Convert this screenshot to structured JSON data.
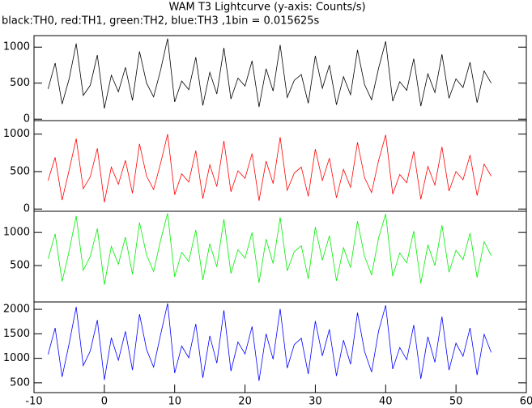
{
  "chart_data": [
    {
      "type": "line",
      "title": "WAM T3 Lightcurve (y-axis: Counts/s)",
      "subtitle": "black:TH0, red:TH1, green:TH2, blue:TH3 ,1bin = 0.015625s",
      "x": [
        -8,
        -7,
        -6,
        -5,
        -4,
        -3,
        -2,
        -1,
        0,
        1,
        2,
        3,
        4,
        5,
        6,
        7,
        8,
        9,
        10,
        11,
        12,
        13,
        14,
        15,
        16,
        17,
        18,
        19,
        20,
        21,
        22,
        23,
        24,
        25,
        26,
        27,
        28,
        29,
        30,
        31,
        32,
        33,
        34,
        35,
        36,
        37,
        38,
        39,
        40,
        41,
        42,
        43,
        44,
        45,
        46,
        47,
        48,
        49,
        50,
        51,
        52,
        53,
        54,
        55
      ],
      "xlim": [
        -10,
        60
      ],
      "ylim": [
        -20,
        1160
      ],
      "yticks": [
        0,
        500,
        1000
      ],
      "series": [
        {
          "color": "#000000",
          "values": [
            420,
            780,
            210,
            560,
            1050,
            330,
            470,
            890,
            150,
            610,
            380,
            720,
            260,
            940,
            500,
            310,
            680,
            1120,
            240,
            530,
            410,
            860,
            190,
            650,
            350,
            990,
            280,
            570,
            460,
            810,
            170,
            700,
            390,
            1030,
            300,
            540,
            620,
            220,
            880,
            430,
            750,
            200,
            590,
            340,
            960,
            480,
            270,
            710,
            1080,
            250,
            520,
            400,
            840,
            180,
            630,
            370,
            900,
            290,
            560,
            440,
            790,
            230,
            670,
            500
          ]
        }
      ]
    },
    {
      "type": "line",
      "x": [
        -8,
        -7,
        -6,
        -5,
        -4,
        -3,
        -2,
        -1,
        0,
        1,
        2,
        3,
        4,
        5,
        6,
        7,
        8,
        9,
        10,
        11,
        12,
        13,
        14,
        15,
        16,
        17,
        18,
        19,
        20,
        21,
        22,
        23,
        24,
        25,
        26,
        27,
        28,
        29,
        30,
        31,
        32,
        33,
        34,
        35,
        36,
        37,
        38,
        39,
        40,
        41,
        42,
        43,
        44,
        45,
        46,
        47,
        48,
        49,
        50,
        51,
        52,
        53,
        54,
        55
      ],
      "xlim": [
        -10,
        60
      ],
      "ylim": [
        -30,
        1180
      ],
      "yticks": [
        0,
        500,
        1000
      ],
      "series": [
        {
          "color": "#ff0000",
          "values": [
            380,
            690,
            120,
            520,
            940,
            270,
            430,
            810,
            90,
            560,
            330,
            650,
            210,
            870,
            440,
            260,
            610,
            1000,
            190,
            470,
            360,
            780,
            140,
            590,
            300,
            910,
            230,
            510,
            410,
            740,
            110,
            640,
            340,
            960,
            250,
            480,
            560,
            170,
            800,
            380,
            680,
            150,
            530,
            290,
            890,
            420,
            220,
            650,
            990,
            200,
            460,
            350,
            770,
            130,
            570,
            320,
            830,
            240,
            500,
            390,
            720,
            180,
            600,
            440
          ]
        }
      ]
    },
    {
      "type": "line",
      "x": [
        -8,
        -7,
        -6,
        -5,
        -4,
        -3,
        -2,
        -1,
        0,
        1,
        2,
        3,
        4,
        5,
        6,
        7,
        8,
        9,
        10,
        11,
        12,
        13,
        14,
        15,
        16,
        17,
        18,
        19,
        20,
        21,
        22,
        23,
        24,
        25,
        26,
        27,
        28,
        29,
        30,
        31,
        32,
        33,
        34,
        35,
        36,
        37,
        38,
        39,
        40,
        41,
        42,
        43,
        44,
        45,
        46,
        47,
        48,
        49,
        50,
        51,
        52,
        53,
        54,
        55
      ],
      "xlim": [
        -10,
        60
      ],
      "ylim": [
        -50,
        1320
      ],
      "yticks": [
        500,
        1000
      ],
      "series": [
        {
          "color": "#00ee00",
          "values": [
            600,
            980,
            260,
            720,
            1250,
            430,
            640,
            1060,
            210,
            790,
            520,
            930,
            370,
            1150,
            660,
            410,
            880,
            1290,
            330,
            700,
            560,
            1040,
            280,
            830,
            480,
            1200,
            380,
            740,
            610,
            1000,
            240,
            900,
            530,
            1230,
            420,
            710,
            800,
            300,
            1080,
            580,
            950,
            270,
            770,
            470,
            1170,
            640,
            360,
            920,
            1280,
            340,
            690,
            540,
            1020,
            230,
            810,
            500,
            1110,
            400,
            730,
            590,
            990,
            320,
            860,
            650
          ]
        }
      ]
    },
    {
      "type": "line",
      "x": [
        -8,
        -7,
        -6,
        -5,
        -4,
        -3,
        -2,
        -1,
        0,
        1,
        2,
        3,
        4,
        5,
        6,
        7,
        8,
        9,
        10,
        11,
        12,
        13,
        14,
        15,
        16,
        17,
        18,
        19,
        20,
        21,
        22,
        23,
        24,
        25,
        26,
        27,
        28,
        29,
        30,
        31,
        32,
        33,
        34,
        35,
        36,
        37,
        38,
        39,
        40,
        41,
        42,
        43,
        44,
        45,
        46,
        47,
        48,
        49,
        50,
        51,
        52,
        53,
        54,
        55
      ],
      "xlim": [
        -10,
        60
      ],
      "xticks": [
        -10,
        0,
        10,
        20,
        30,
        40,
        50,
        60
      ],
      "ylim": [
        300,
        2150
      ],
      "yticks": [
        500,
        1000,
        1500,
        2000
      ],
      "series": [
        {
          "color": "#0000ff",
          "values": [
            1080,
            1620,
            620,
            1300,
            2050,
            850,
            1150,
            1780,
            560,
            1420,
            960,
            1550,
            760,
            1900,
            1180,
            820,
            1480,
            2120,
            700,
            1250,
            1010,
            1700,
            600,
            1460,
            900,
            1980,
            740,
            1330,
            1090,
            1650,
            540,
            1500,
            980,
            2010,
            800,
            1280,
            1410,
            680,
            1760,
            1050,
            1590,
            640,
            1370,
            880,
            1930,
            1140,
            720,
            1560,
            2080,
            780,
            1220,
            970,
            1680,
            580,
            1440,
            920,
            1850,
            760,
            1310,
            1040,
            1620,
            660,
            1490,
            1120
          ]
        }
      ]
    }
  ]
}
